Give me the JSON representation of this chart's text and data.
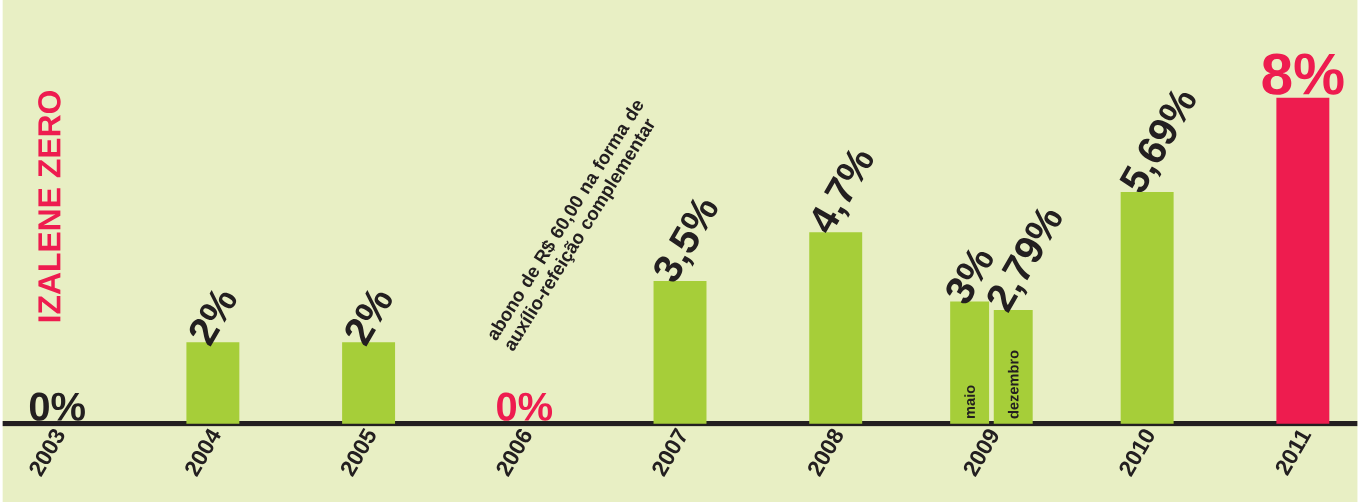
{
  "chart_data": {
    "type": "bar",
    "categories": [
      "2003",
      "2004",
      "2005",
      "2006",
      "2007",
      "2008",
      "2009",
      "2010",
      "2011"
    ],
    "series": [
      {
        "color": "#a6ce39",
        "colors": [
          "#231f20",
          "#a6ce39",
          "#a6ce39",
          "#ee1c4f",
          "#a6ce39",
          "#a6ce39",
          "#a6ce39",
          "#a6ce39",
          "#ee1c4f"
        ],
        "values": [
          0,
          2,
          2,
          0,
          3.5,
          4.7,
          3,
          5.69,
          8
        ],
        "value_labels": [
          "0%",
          "2%",
          "2%",
          "0%",
          "3,5%",
          "4,7%",
          "3%",
          "5,69%",
          "8%"
        ]
      },
      {
        "color": "#a6ce39",
        "values": [
          null,
          null,
          null,
          null,
          null,
          null,
          2.79,
          null,
          null
        ],
        "value_labels": [
          null,
          null,
          null,
          null,
          null,
          null,
          "2,79%",
          null,
          null
        ]
      }
    ],
    "annotations": [
      "IZALENE ZERO",
      "abono de R$ 60,00 na forma de auxílio-refeição complementar",
      "maio",
      "dezembro"
    ],
    "data_labels": true
  }
}
